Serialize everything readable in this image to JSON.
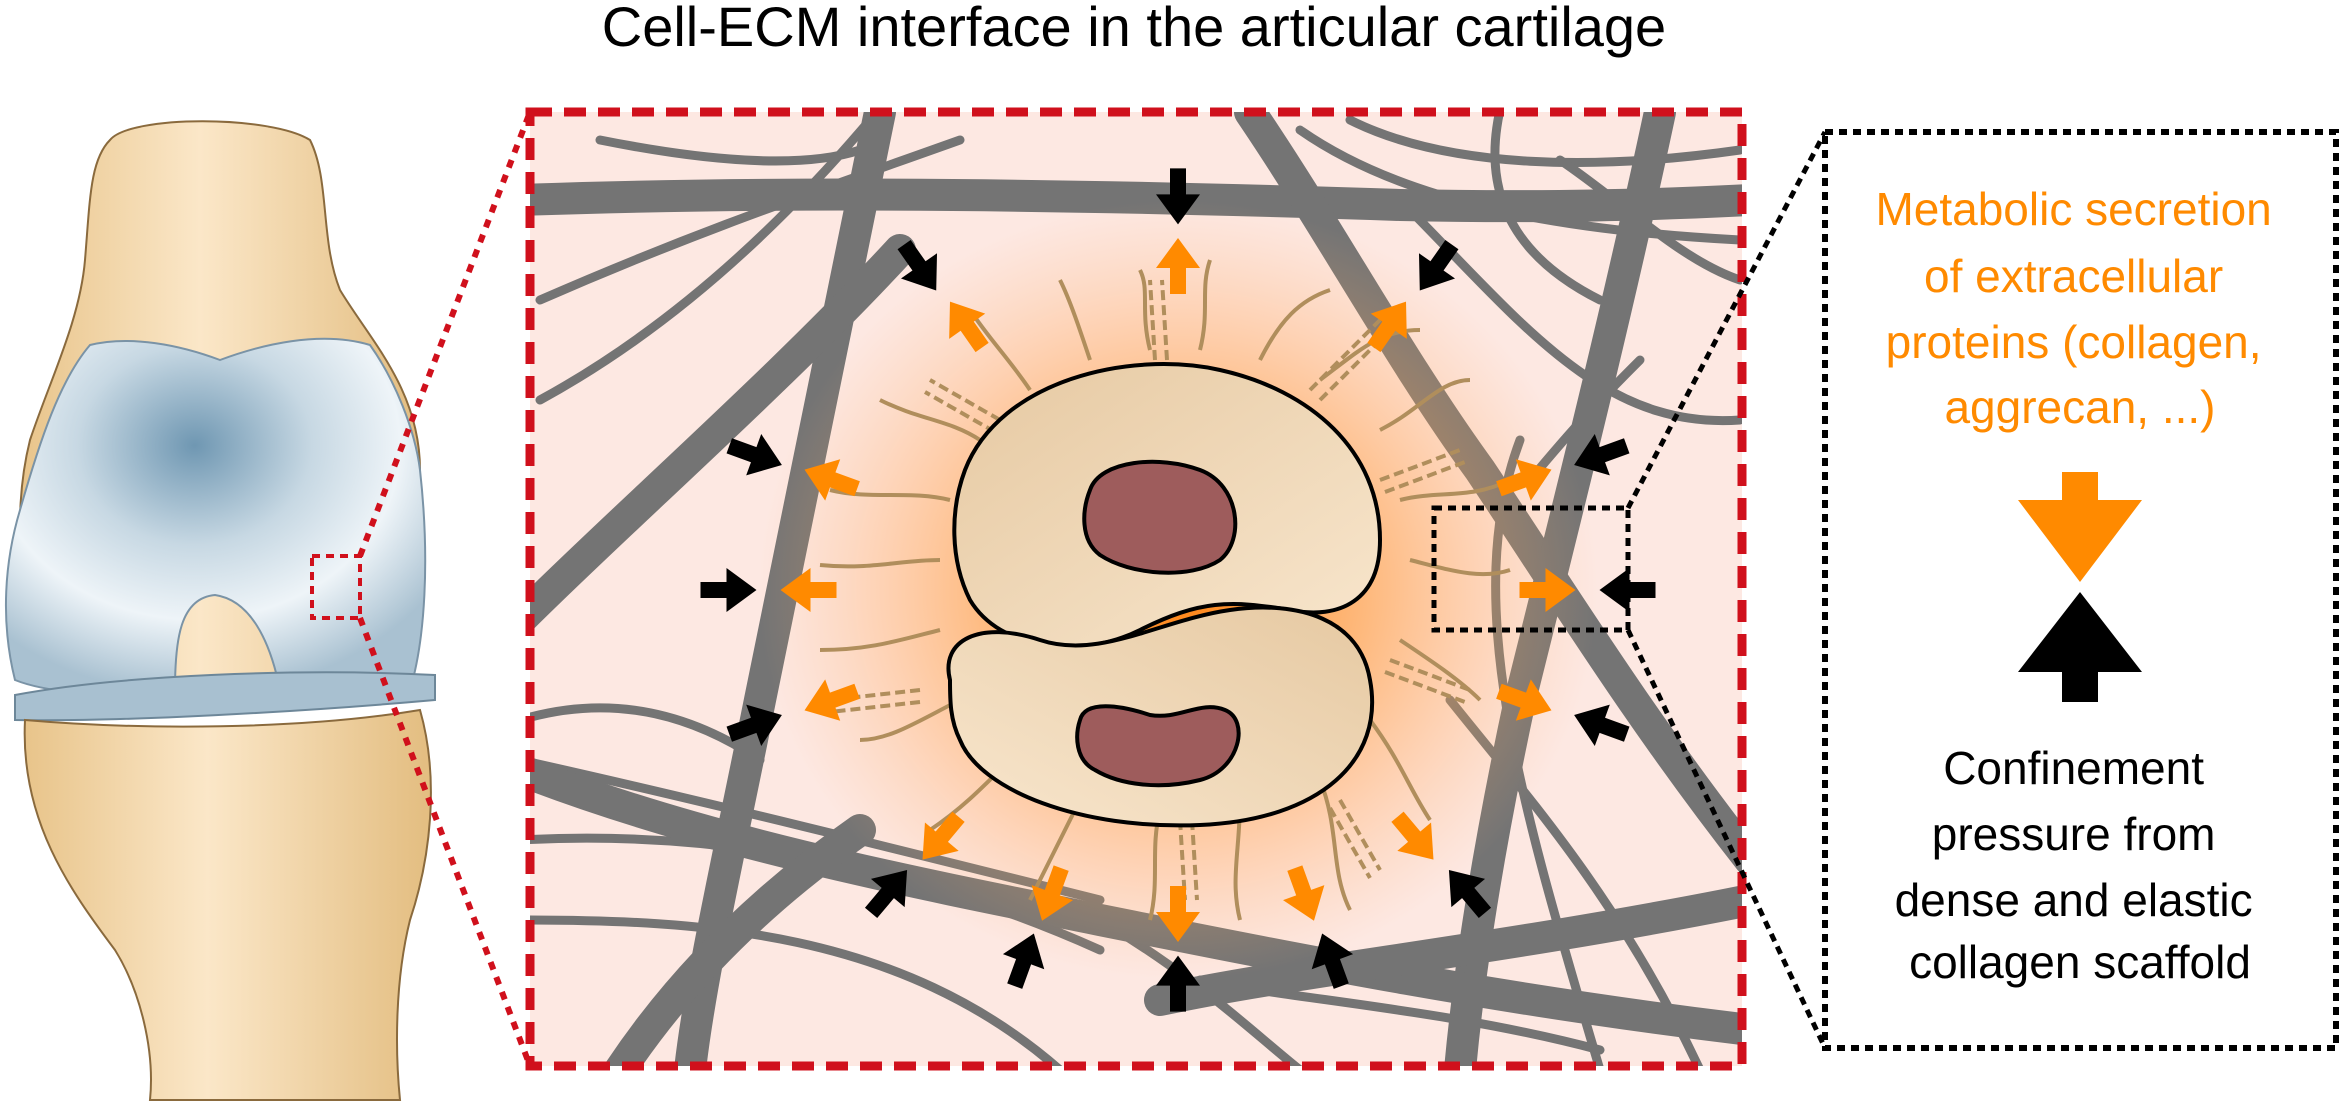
{
  "title": "Cell-ECM interface in the articular cartilage",
  "secretion": {
    "lines": [
      "Metabolic secretion",
      "of extracellular",
      "proteins (collagen,",
      "aggrecan, ...)"
    ]
  },
  "confinement": {
    "lines": [
      "Confinement",
      "pressure from",
      "dense and elastic",
      "collagen scaffold"
    ]
  },
  "colors": {
    "secretion": "#ff8a00",
    "confinement": "#000000",
    "frame": "#d0101c",
    "fiber": "#747474",
    "matrix_bg": "#fde8e2",
    "bone": "#f2d8a8",
    "cartilage": "#b7ccd9",
    "cell": "#f1dbbc",
    "nucleus": "#9e5c5c",
    "collagen_strand": "#b08e5c"
  },
  "icons": [
    "knee-joint-icon",
    "chondrocyte-icon",
    "nucleus-icon",
    "inward-arrow-icon",
    "outward-arrow-icon"
  ]
}
